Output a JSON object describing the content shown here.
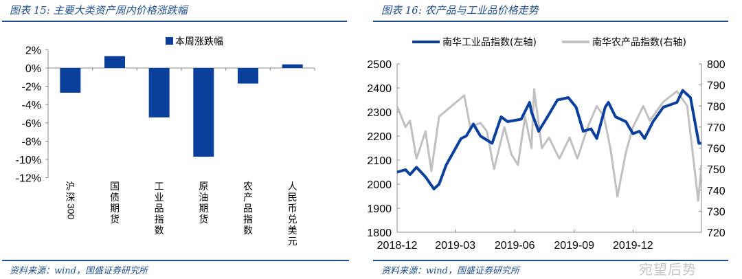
{
  "left": {
    "title": "图表 15:  主要大类资产周内价格涨跌幅",
    "source": "资料来源：wind，国盛证券研究所"
  },
  "right": {
    "title": "图表 16:  农产品与工业品价格走势",
    "source": "资料来源：wind，国盛证券研究所"
  },
  "watermark": "宛望后势",
  "colors": {
    "accent": "#1f4e8c",
    "bar": "#0a3f9c",
    "industrial": "#0a3f9c",
    "agri": "#c0c0c0"
  },
  "chart_data": [
    {
      "type": "bar",
      "title": "",
      "legend": [
        "本周涨跌幅"
      ],
      "legend_position": "top",
      "categories": [
        "沪深300",
        "国债期货",
        "工业品指数",
        "原油期货",
        "农产品指数",
        "人民币兑美元"
      ],
      "series": [
        {
          "name": "本周涨跌幅",
          "values": [
            -2.7,
            1.3,
            -5.4,
            -9.7,
            -1.7,
            0.4
          ]
        }
      ],
      "unit": "%",
      "ylim": [
        -12,
        2
      ],
      "yticks": [
        "2%",
        "0%",
        "-2%",
        "-4%",
        "-6%",
        "-8%",
        "-10%",
        "-12%"
      ],
      "grid": false
    },
    {
      "type": "line",
      "title": "",
      "legend_position": "top",
      "xlim": [
        "2018-12-01",
        "2020-03-16"
      ],
      "xticks": [
        "2018-12",
        "2019-03",
        "2019-06",
        "2019-09",
        "2019-12"
      ],
      "y_left": {
        "range": [
          1800,
          2500
        ],
        "ticks": [
          "2500",
          "2400",
          "2300",
          "2200",
          "2100",
          "2000",
          "1900",
          "1800"
        ]
      },
      "y_right": {
        "range": [
          720,
          800
        ],
        "ticks": [
          "800",
          "790",
          "780",
          "770",
          "760",
          "750",
          "740",
          "730",
          "720"
        ]
      },
      "grid": false,
      "series": [
        {
          "name": "南华工业品指数(左轴)",
          "axis": "left",
          "x": [
            "2018-12-01",
            "2018-12-14",
            "2018-12-21",
            "2018-12-31",
            "2019-01-14",
            "2019-01-27",
            "2019-02-04",
            "2019-02-15",
            "2019-03-10",
            "2019-03-18",
            "2019-03-29",
            "2019-04-09",
            "2019-04-27",
            "2019-05-11",
            "2019-05-21",
            "2019-06-11",
            "2019-06-24",
            "2019-06-27",
            "2019-07-08",
            "2019-07-24",
            "2019-08-06",
            "2019-08-23",
            "2019-09-04",
            "2019-09-15",
            "2019-09-27",
            "2019-10-06",
            "2019-10-19",
            "2019-10-24",
            "2019-11-04",
            "2019-11-20",
            "2019-12-01",
            "2019-12-11",
            "2019-12-19",
            "2020-01-01",
            "2020-01-17",
            "2020-02-07",
            "2020-02-16",
            "2020-02-28",
            "2020-03-12",
            "2020-03-16"
          ],
          "y": [
            2050,
            2060,
            2040,
            2070,
            2030,
            1980,
            2000,
            2080,
            2190,
            2200,
            2250,
            2200,
            2170,
            2280,
            2260,
            2270,
            2340,
            2300,
            2220,
            2290,
            2350,
            2360,
            2320,
            2220,
            2230,
            2190,
            2320,
            2340,
            2280,
            2260,
            2210,
            2220,
            2190,
            2260,
            2320,
            2340,
            2390,
            2360,
            2170,
            2170
          ]
        },
        {
          "name": "南华农产品指数(右轴)",
          "axis": "right",
          "x": [
            "2018-12-01",
            "2018-12-14",
            "2018-12-21",
            "2018-12-31",
            "2019-01-14",
            "2019-01-23",
            "2019-02-04",
            "2019-03-15",
            "2019-03-24",
            "2019-04-09",
            "2019-04-19",
            "2019-04-30",
            "2019-05-16",
            "2019-05-27",
            "2019-06-06",
            "2019-06-17",
            "2019-06-27",
            "2019-07-01",
            "2019-07-13",
            "2019-07-24",
            "2019-08-09",
            "2019-08-25",
            "2019-09-06",
            "2019-09-22",
            "2019-10-06",
            "2019-10-17",
            "2019-10-27",
            "2019-11-07",
            "2019-11-20",
            "2019-12-01",
            "2019-12-17",
            "2019-12-27",
            "2020-01-17",
            "2020-02-07",
            "2020-02-23",
            "2020-03-11",
            "2020-03-16"
          ],
          "y": [
            780,
            770,
            773,
            755,
            768,
            749,
            775,
            785,
            770,
            772,
            768,
            750,
            770,
            757,
            752,
            775,
            760,
            788,
            760,
            765,
            755,
            765,
            755,
            770,
            780,
            775,
            760,
            737,
            758,
            770,
            780,
            773,
            782,
            787,
            780,
            735,
            752
          ]
        }
      ]
    }
  ]
}
